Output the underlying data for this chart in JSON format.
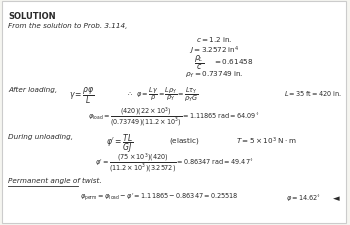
{
  "bg_color": "#f5f5f0",
  "border_color": "#cccccc",
  "text_color": "#2a2a2a",
  "title": "SOLUTION",
  "subtitle": "From the solution to Prob. 3.114,",
  "after_loading_label": "After loading,",
  "during_unloading_label": "During unloading,",
  "perm_label": "Permanent angle of twist."
}
